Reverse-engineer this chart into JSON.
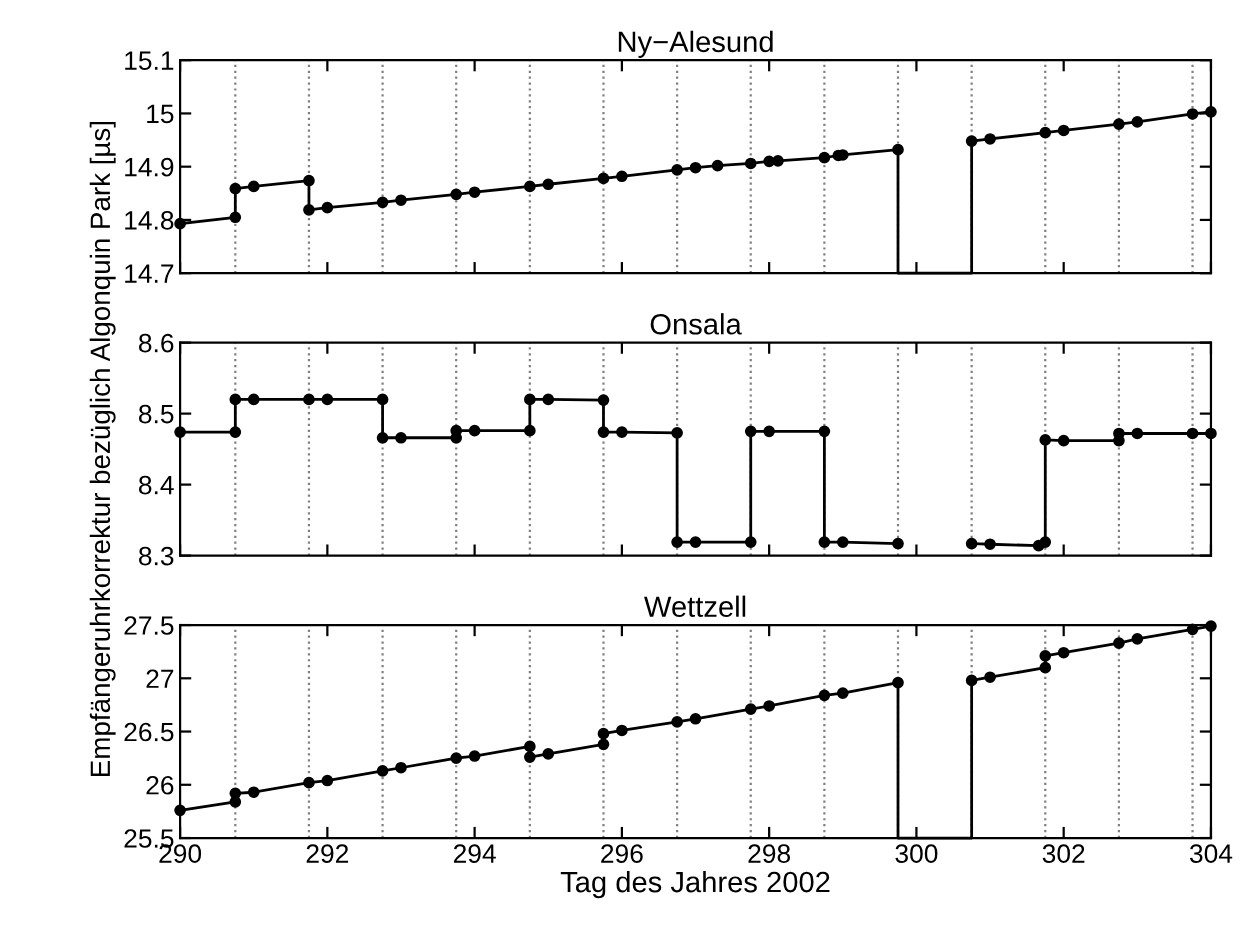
{
  "chart_data": [
    {
      "type": "line",
      "title": "Ny−Alesund",
      "marker": "circle",
      "line_style": "solid",
      "tick_labels": "y",
      "xlim": [
        290,
        304
      ],
      "xticks": [
        290,
        292,
        294,
        296,
        298,
        300,
        302,
        304
      ],
      "ylim": [
        14.7,
        15.1
      ],
      "yticks": [
        14.7,
        14.8,
        14.9,
        {
          "value": 15.0,
          "label": "15"
        },
        15.1
      ],
      "ref_lines": [
        {
          "axis": "x",
          "value": 290.75,
          "color": "#808080",
          "line_style": "dotted"
        },
        {
          "axis": "x",
          "value": 291.75,
          "color": "#808080",
          "line_style": "dotted"
        },
        {
          "axis": "x",
          "value": 292.75,
          "color": "#808080",
          "line_style": "dotted"
        },
        {
          "axis": "x",
          "value": 293.75,
          "color": "#808080",
          "line_style": "dotted"
        },
        {
          "axis": "x",
          "value": 294.75,
          "color": "#808080",
          "line_style": "dotted"
        },
        {
          "axis": "x",
          "value": 295.75,
          "color": "#808080",
          "line_style": "dotted"
        },
        {
          "axis": "x",
          "value": 296.75,
          "color": "#808080",
          "line_style": "dotted"
        },
        {
          "axis": "x",
          "value": 297.75,
          "color": "#808080",
          "line_style": "dotted"
        },
        {
          "axis": "x",
          "value": 298.75,
          "color": "#808080",
          "line_style": "dotted"
        },
        {
          "axis": "x",
          "value": 299.75,
          "color": "#808080",
          "line_style": "dotted"
        },
        {
          "axis": "x",
          "value": 300.75,
          "color": "#808080",
          "line_style": "dotted"
        },
        {
          "axis": "x",
          "value": 301.75,
          "color": "#808080",
          "line_style": "dotted"
        },
        {
          "axis": "x",
          "value": 302.75,
          "color": "#808080",
          "line_style": "dotted"
        },
        {
          "axis": "x",
          "value": 303.75,
          "color": "#808080",
          "line_style": "dotted"
        }
      ],
      "series": [
        {
          "color": "#000000",
          "x": [
            290,
            290.75,
            290.75,
            291,
            291.75,
            291.75,
            292,
            292.75,
            293,
            293.75,
            294,
            294.75,
            295,
            295.75,
            296,
            296.75,
            297,
            297.3,
            297.75,
            298,
            298.12,
            298.75,
            298.94,
            299,
            299.75,
            300.25,
            300.75,
            301,
            301.75,
            302,
            302.75,
            303,
            303.75,
            304
          ],
          "values": [
            14.793,
            14.805,
            14.859,
            14.863,
            14.874,
            14.819,
            14.823,
            14.833,
            14.837,
            14.848,
            14.852,
            14.863,
            14.867,
            14.878,
            14.882,
            14.894,
            14.898,
            14.902,
            14.906,
            14.91,
            14.911,
            14.917,
            14.921,
            14.922,
            14.932,
            null,
            14.948,
            14.952,
            14.964,
            14.968,
            14.98,
            14.984,
            14.999,
            15.003
          ]
        },
        {
          "color": "#000000",
          "marker": "none",
          "x": [
            299.75,
            299.75,
            300.75,
            300.75
          ],
          "values": [
            14.932,
            14.7,
            14.7,
            14.948
          ]
        }
      ]
    },
    {
      "type": "line",
      "title": "Onsala",
      "ylabel": "Empfängeruhrkorrektur bezüglich Algonquin Park [µs]",
      "marker": "circle",
      "line_style": "solid",
      "tick_labels": "y",
      "xlim": [
        290,
        304
      ],
      "xticks": [
        290,
        292,
        294,
        296,
        298,
        300,
        302,
        304
      ],
      "ylim": [
        8.3,
        8.6
      ],
      "yticks": [
        8.3,
        8.4,
        8.5,
        8.6
      ],
      "ref_lines": [
        {
          "axis": "x",
          "value": 290.75,
          "color": "#808080",
          "line_style": "dotted"
        },
        {
          "axis": "x",
          "value": 291.75,
          "color": "#808080",
          "line_style": "dotted"
        },
        {
          "axis": "x",
          "value": 292.75,
          "color": "#808080",
          "line_style": "dotted"
        },
        {
          "axis": "x",
          "value": 293.75,
          "color": "#808080",
          "line_style": "dotted"
        },
        {
          "axis": "x",
          "value": 294.75,
          "color": "#808080",
          "line_style": "dotted"
        },
        {
          "axis": "x",
          "value": 295.75,
          "color": "#808080",
          "line_style": "dotted"
        },
        {
          "axis": "x",
          "value": 296.75,
          "color": "#808080",
          "line_style": "dotted"
        },
        {
          "axis": "x",
          "value": 297.75,
          "color": "#808080",
          "line_style": "dotted"
        },
        {
          "axis": "x",
          "value": 298.75,
          "color": "#808080",
          "line_style": "dotted"
        },
        {
          "axis": "x",
          "value": 299.75,
          "color": "#808080",
          "line_style": "dotted"
        },
        {
          "axis": "x",
          "value": 300.75,
          "color": "#808080",
          "line_style": "dotted"
        },
        {
          "axis": "x",
          "value": 301.75,
          "color": "#808080",
          "line_style": "dotted"
        },
        {
          "axis": "x",
          "value": 302.75,
          "color": "#808080",
          "line_style": "dotted"
        },
        {
          "axis": "x",
          "value": 303.75,
          "color": "#808080",
          "line_style": "dotted"
        }
      ],
      "series": [
        {
          "color": "#000000",
          "x": [
            290,
            290.75,
            290.75,
            291,
            291.75,
            292,
            292.75,
            292.75,
            293,
            293.75,
            293.75,
            294,
            294.75,
            294.75,
            295,
            295.75,
            295.75,
            296,
            296.75,
            296.75,
            297,
            297.75,
            297.75,
            298,
            298.75,
            298.75,
            299,
            299.75,
            300.25,
            300.75,
            301,
            301.66,
            301.75,
            301.75,
            302,
            302.75,
            302.75,
            303,
            303.75,
            304
          ],
          "values": [
            8.474,
            8.474,
            8.52,
            8.52,
            8.52,
            8.52,
            8.52,
            8.466,
            8.466,
            8.466,
            8.476,
            8.476,
            8.476,
            8.52,
            8.52,
            8.519,
            8.474,
            8.474,
            8.473,
            8.319,
            8.319,
            8.319,
            8.475,
            8.475,
            8.475,
            8.319,
            8.319,
            8.317,
            null,
            8.317,
            8.316,
            8.314,
            8.319,
            8.463,
            8.462,
            8.462,
            8.472,
            8.472,
            8.472,
            8.472
          ]
        }
      ]
    },
    {
      "type": "line",
      "title": "Wettzell",
      "xlabel": "Tag des Jahres 2002",
      "marker": "circle",
      "line_style": "solid",
      "xlim": [
        290,
        304
      ],
      "xticks": [
        290,
        292,
        294,
        296,
        298,
        300,
        302,
        304
      ],
      "ylim": [
        25.5,
        27.5
      ],
      "yticks": [
        25.5,
        26,
        26.5,
        27,
        27.5
      ],
      "ref_lines": [
        {
          "axis": "x",
          "value": 290.75,
          "color": "#808080",
          "line_style": "dotted"
        },
        {
          "axis": "x",
          "value": 291.75,
          "color": "#808080",
          "line_style": "dotted"
        },
        {
          "axis": "x",
          "value": 292.75,
          "color": "#808080",
          "line_style": "dotted"
        },
        {
          "axis": "x",
          "value": 293.75,
          "color": "#808080",
          "line_style": "dotted"
        },
        {
          "axis": "x",
          "value": 294.75,
          "color": "#808080",
          "line_style": "dotted"
        },
        {
          "axis": "x",
          "value": 295.75,
          "color": "#808080",
          "line_style": "dotted"
        },
        {
          "axis": "x",
          "value": 296.75,
          "color": "#808080",
          "line_style": "dotted"
        },
        {
          "axis": "x",
          "value": 297.75,
          "color": "#808080",
          "line_style": "dotted"
        },
        {
          "axis": "x",
          "value": 298.75,
          "color": "#808080",
          "line_style": "dotted"
        },
        {
          "axis": "x",
          "value": 299.75,
          "color": "#808080",
          "line_style": "dotted"
        },
        {
          "axis": "x",
          "value": 300.75,
          "color": "#808080",
          "line_style": "dotted"
        },
        {
          "axis": "x",
          "value": 301.75,
          "color": "#808080",
          "line_style": "dotted"
        },
        {
          "axis": "x",
          "value": 302.75,
          "color": "#808080",
          "line_style": "dotted"
        },
        {
          "axis": "x",
          "value": 303.75,
          "color": "#808080",
          "line_style": "dotted"
        }
      ],
      "series": [
        {
          "color": "#000000",
          "x": [
            290,
            290.75,
            290.75,
            291,
            291.75,
            292,
            292.75,
            293,
            293.75,
            294,
            294.75,
            294.75,
            295,
            295.75,
            295.75,
            296,
            296.75,
            297,
            297.75,
            298,
            298.75,
            299,
            299.75,
            300.25,
            300.75,
            301,
            301.75,
            301.75,
            302,
            302.75,
            303,
            303.75,
            304
          ],
          "values": [
            25.76,
            25.84,
            25.92,
            25.93,
            26.02,
            26.04,
            26.13,
            26.16,
            26.25,
            26.27,
            26.36,
            26.26,
            26.29,
            26.38,
            26.48,
            26.51,
            26.59,
            26.62,
            26.71,
            26.74,
            26.84,
            26.86,
            26.96,
            null,
            26.98,
            27.01,
            27.1,
            27.21,
            27.24,
            27.33,
            27.37,
            27.46,
            27.49
          ]
        },
        {
          "color": "#000000",
          "marker": "none",
          "x": [
            299.75,
            299.75,
            300.75,
            300.75
          ],
          "values": [
            26.96,
            25.5,
            25.5,
            26.98
          ]
        }
      ]
    }
  ]
}
